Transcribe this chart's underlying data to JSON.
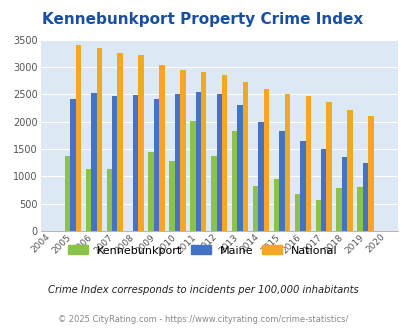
{
  "title": "Kennebunkport Property Crime Index",
  "years": [
    "2004",
    "2005",
    "2006",
    "2007",
    "2008",
    "2009",
    "2010",
    "2011",
    "2012",
    "2013",
    "2014",
    "2015",
    "2016",
    "2017",
    "2018",
    "2019",
    "2020"
  ],
  "kennebunkport": [
    0,
    1380,
    1130,
    1130,
    0,
    1440,
    1280,
    2010,
    1380,
    1830,
    820,
    950,
    680,
    570,
    780,
    800,
    0
  ],
  "maine": [
    0,
    2420,
    2530,
    2460,
    2480,
    2420,
    2500,
    2550,
    2510,
    2300,
    2000,
    1830,
    1640,
    1500,
    1350,
    1240,
    0
  ],
  "national": [
    0,
    3400,
    3340,
    3260,
    3210,
    3040,
    2950,
    2900,
    2860,
    2720,
    2590,
    2500,
    2470,
    2360,
    2210,
    2110,
    0
  ],
  "kennebunkport_color": "#8bc34a",
  "maine_color": "#4472c4",
  "national_color": "#f5a623",
  "background_color": "#dce9f5",
  "ylim": [
    0,
    3500
  ],
  "title_fontsize": 11,
  "title_color": "#1a4fa0",
  "subtitle": "Crime Index corresponds to incidents per 100,000 inhabitants",
  "footer": "© 2025 CityRating.com - https://www.cityrating.com/crime-statistics/",
  "legend_labels": [
    "Kennebunkport",
    "Maine",
    "National"
  ]
}
